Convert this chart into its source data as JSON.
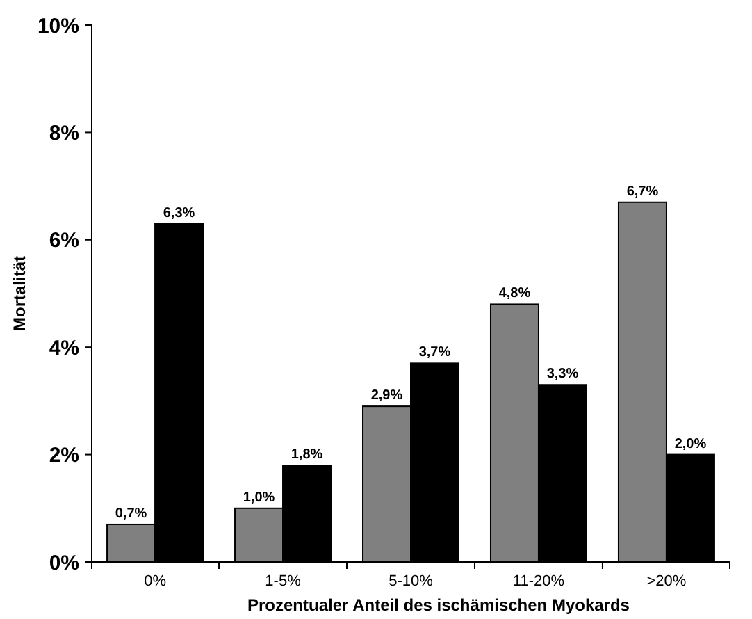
{
  "chart_data": {
    "type": "bar",
    "xlabel": "Prozentualer Anteil des ischämischen Myokards",
    "ylabel": "Mortalität",
    "categories": [
      "0%",
      "1-5%",
      "5-10%",
      "11-20%",
      ">20%"
    ],
    "series": [
      {
        "color": "#808080",
        "values": [
          0.7,
          1.0,
          2.9,
          4.8,
          6.7
        ],
        "value_labels": [
          "0,7%",
          "1,0%",
          "2,9%",
          "4,8%",
          "6,7%"
        ]
      },
      {
        "color": "#000000",
        "values": [
          6.3,
          1.8,
          3.7,
          3.3,
          2.0
        ],
        "value_labels": [
          "6,3%",
          "1,8%",
          "3,7%",
          "3,3%",
          "2,0%"
        ]
      }
    ],
    "ylim": [
      0,
      10
    ],
    "yticks": [
      {
        "value": 0,
        "label": "0%"
      },
      {
        "value": 2,
        "label": "2%"
      },
      {
        "value": 4,
        "label": "4%"
      },
      {
        "value": 6,
        "label": "6%"
      },
      {
        "value": 8,
        "label": "8%"
      },
      {
        "value": 10,
        "label": "10%"
      }
    ]
  }
}
